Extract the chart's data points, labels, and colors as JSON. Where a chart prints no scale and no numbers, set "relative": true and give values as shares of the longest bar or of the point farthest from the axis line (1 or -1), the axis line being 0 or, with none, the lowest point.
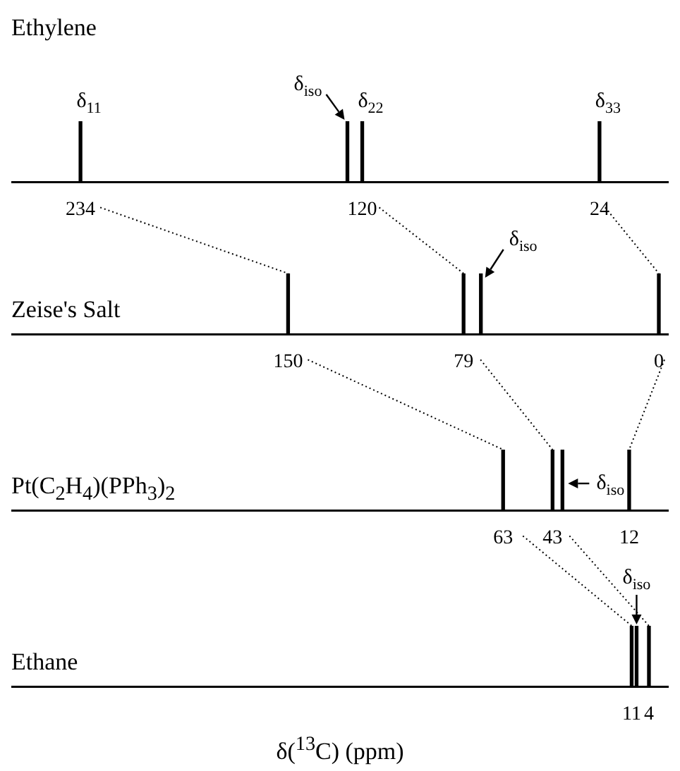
{
  "chart_data": [
    {
      "type": "bar",
      "title": "Ethylene",
      "relative": true,
      "color": "#000000",
      "x": [
        234,
        126,
        120,
        24
      ],
      "values": [
        1,
        1,
        1,
        1
      ],
      "xlim": [
        262,
        -4
      ],
      "xticks": [
        234,
        120,
        24
      ],
      "annotations": [
        {
          "text": "δ$_{11}$",
          "x": 234,
          "y": 1
        },
        {
          "text": "δ$_{iso}$",
          "x": 126,
          "y": 1
        },
        {
          "text": "δ$_{22}$",
          "x": 120,
          "y": 1
        },
        {
          "text": "δ$_{33}$",
          "x": 24,
          "y": 1
        }
      ]
    },
    {
      "type": "bar",
      "title": "Zeise's Salt",
      "relative": true,
      "color": "#000000",
      "x": [
        150,
        79,
        72,
        0
      ],
      "values": [
        1,
        1,
        1,
        1
      ],
      "xlim": [
        262,
        -4
      ],
      "xticks": [
        150,
        79,
        0
      ],
      "annotations": [
        {
          "text": "δ$_{iso}$",
          "x": 72,
          "y": 1
        }
      ]
    },
    {
      "type": "bar",
      "title": "Pt(C$_{2}$H$_{4}$)(PPh$_{3}$)$_{2}$",
      "relative": true,
      "color": "#000000",
      "x": [
        63,
        43,
        39,
        12
      ],
      "values": [
        1,
        1,
        1,
        1
      ],
      "xlim": [
        262,
        -4
      ],
      "xticks": [
        63,
        43,
        12
      ],
      "annotations": [
        {
          "text": "δ$_{iso}$",
          "x": 39,
          "y": 1
        }
      ]
    },
    {
      "type": "bar",
      "title": "Ethane",
      "xlabel": "δ($^{13}$C) (ppm)",
      "relative": true,
      "color": "#000000",
      "x": [
        11,
        9,
        4
      ],
      "values": [
        1,
        1,
        1
      ],
      "xlim": [
        262,
        -4
      ],
      "xticks": [
        11,
        4
      ],
      "annotations": [
        {
          "text": "δ$_{iso}$",
          "x": 9,
          "y": 1
        }
      ]
    }
  ]
}
